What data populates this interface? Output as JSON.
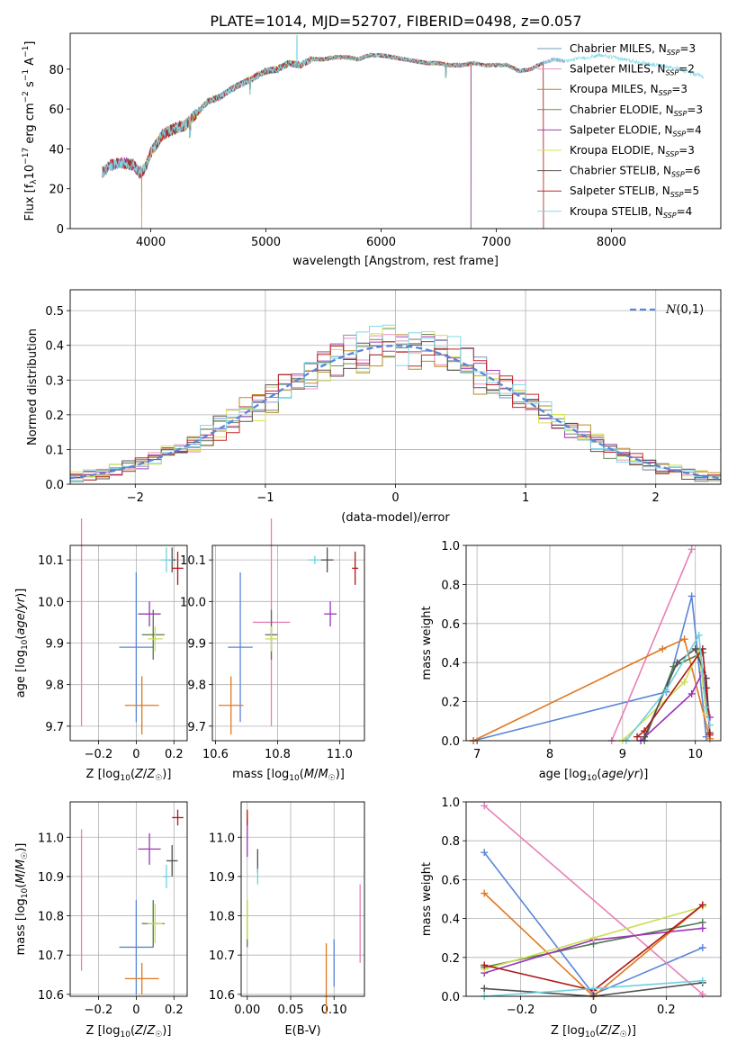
{
  "title": "PLATE=1014, MJD=52707, FIBERID=0498, z=0.057",
  "colors": [
    "#6f99b8",
    "#e88fc0",
    "#b88a2a",
    "#6f8a5f",
    "#a040b0",
    "#d8e050",
    "#5f5050",
    "#c02828",
    "#80d8e8"
  ],
  "panel_colors": [
    "#5a85d8",
    "#e87fb8",
    "#e07820",
    "#507850",
    "#9a35b8",
    "#c8e050",
    "#505050",
    "#b01818",
    "#70d0e0"
  ],
  "legend1": [
    "Chabrier MILES, N$_{SSP}$=3",
    "Salpeter MILES, N$_{SSP}$=2",
    "Kroupa MILES, N$_{SSP}$=3",
    "Chabrier ELODIE, N$_{SSP}$=3",
    "Salpeter ELODIE, N$_{SSP}$=4",
    "Kroupa ELODIE, N$_{SSP}$=3",
    "Chabrier STELIB, N$_{SSP}$=6",
    "Salpeter STELIB, N$_{SSP}$=5",
    "Kroupa STELIB, N$_{SSP}$=4"
  ],
  "legend1_display": [
    [
      "Chabrier MILES, N",
      "SSP",
      "=3"
    ],
    [
      "Salpeter MILES, N",
      "SSP",
      "=2"
    ],
    [
      "Kroupa MILES, N",
      "SSP",
      "=3"
    ],
    [
      "Chabrier ELODIE, N",
      "SSP",
      "=3"
    ],
    [
      "Salpeter ELODIE, N",
      "SSP",
      "=4"
    ],
    [
      "Kroupa ELODIE, N",
      "SSP",
      "=3"
    ],
    [
      "Chabrier STELIB, N",
      "SSP",
      "=6"
    ],
    [
      "Salpeter STELIB, N",
      "SSP",
      "=5"
    ],
    [
      "Kroupa STELIB, N",
      "SSP",
      "=4"
    ]
  ],
  "legend2": "N(0,1)",
  "chart_data": [
    {
      "type": "line",
      "title": "PLATE=1014, MJD=52707, FIBERID=0498, z=0.057",
      "xlabel": "wavelength [Angstrom, rest frame]",
      "ylabel": "Flux [f_λ 10^-17 erg cm^-2 s^-1 A^-1]",
      "xlim": [
        3300,
        8950
      ],
      "ylim": [
        0,
        98
      ],
      "xticks": [
        4000,
        5000,
        6000,
        7000,
        8000
      ],
      "yticks": [
        0,
        20,
        40,
        60,
        80
      ],
      "spectrum_anchors_x": [
        3580,
        3650,
        3750,
        3850,
        3900,
        3950,
        4000,
        4100,
        4200,
        4300,
        4400,
        4500,
        4600,
        4700,
        4800,
        4900,
        5000,
        5100,
        5200,
        5300,
        5400,
        5500,
        5600,
        5700,
        5800,
        5900,
        6000,
        6100,
        6200,
        6300,
        6400,
        6500,
        6600,
        6700,
        6800,
        6900,
        7000,
        7100,
        7200,
        7300,
        7400,
        7500,
        7600,
        7700,
        7800,
        7900,
        8000,
        8100,
        8200,
        8300,
        8400,
        8500,
        8600,
        8700,
        8800
      ],
      "spectrum_anchors_y": [
        28,
        32,
        33,
        32,
        28,
        30,
        38,
        47,
        50,
        52,
        58,
        64,
        66,
        70,
        73,
        76,
        79,
        80,
        83,
        82,
        85,
        85,
        86,
        86,
        85,
        87,
        87,
        86,
        85,
        84,
        83,
        83,
        82,
        82,
        83,
        82,
        82,
        82,
        79,
        80,
        83,
        85,
        84,
        85,
        86,
        87,
        86,
        85,
        84,
        83,
        82,
        81,
        80,
        78,
        76
      ],
      "series": [
        {
          "name": "Chabrier MILES, N_SSP=3",
          "x_range": [
            3580,
            7600
          ]
        },
        {
          "name": "Salpeter MILES, N_SSP=2",
          "x_range": [
            3580,
            7600
          ]
        },
        {
          "name": "Kroupa MILES, N_SSP=3",
          "x_range": [
            3580,
            7410
          ],
          "drops": [
            3920,
            6780
          ]
        },
        {
          "name": "Chabrier ELODIE, N_SSP=3",
          "x_range": [
            3580,
            6780
          ]
        },
        {
          "name": "Salpeter ELODIE, N_SSP=4",
          "x_range": [
            3580,
            6780
          ]
        },
        {
          "name": "Kroupa ELODIE, N_SSP=3",
          "x_range": [
            3900,
            6780
          ]
        },
        {
          "name": "Chabrier STELIB, N_SSP=6",
          "x_range": [
            3580,
            7410
          ]
        },
        {
          "name": "Salpeter STELIB, N_SSP=5",
          "x_range": [
            3580,
            7410
          ]
        },
        {
          "name": "Kroupa STELIB, N_SSP=4",
          "x_range": [
            3580,
            8800
          ]
        }
      ]
    },
    {
      "type": "histogram",
      "xlabel": "(data-model)/error",
      "ylabel": "Normed distribution",
      "xlim": [
        -2.5,
        2.5
      ],
      "ylim": [
        0,
        0.56
      ],
      "xticks": [
        -2,
        -1,
        0,
        1,
        2
      ],
      "yticks": [
        0.0,
        0.1,
        0.2,
        0.3,
        0.4,
        0.5
      ],
      "bin_width": 0.1,
      "reference": {
        "name": "N(0,1)",
        "mean": 0,
        "sigma": 1,
        "style": "dashed"
      }
    },
    {
      "type": "scatter",
      "xlabel": "Z [log10(Z/Z☉)]",
      "ylabel": "age [log10(age/yr)]",
      "xlim": [
        -0.35,
        0.27
      ],
      "ylim": [
        9.665,
        10.135
      ],
      "xticks": [
        -0.2,
        0.0,
        0.2
      ],
      "yticks": [
        9.7,
        9.8,
        9.9,
        10.0,
        10.1
      ],
      "points": [
        {
          "x": 0.0,
          "y": 9.89,
          "xerr": 0.09,
          "yerr": 0.18
        },
        {
          "x": -0.29,
          "y": 9.95,
          "xerr": 0.0,
          "yerr": 0.25
        },
        {
          "x": 0.03,
          "y": 9.75,
          "xerr": 0.09,
          "yerr": 0.07
        },
        {
          "x": 0.09,
          "y": 9.92,
          "xerr": 0.06,
          "yerr": 0.06
        },
        {
          "x": 0.07,
          "y": 9.97,
          "xerr": 0.06,
          "yerr": 0.03
        },
        {
          "x": 0.1,
          "y": 9.91,
          "xerr": 0.04,
          "yerr": 0.03
        },
        {
          "x": 0.19,
          "y": 10.1,
          "xerr": 0.02,
          "yerr": 0.03
        },
        {
          "x": 0.22,
          "y": 10.08,
          "xerr": 0.03,
          "yerr": 0.04
        },
        {
          "x": 0.16,
          "y": 10.1,
          "xerr": 0.03,
          "yerr": 0.03
        }
      ]
    },
    {
      "type": "scatter",
      "xlabel": "mass [log10(M/M☉)]",
      "ylabel": "",
      "xlim": [
        10.59,
        11.08
      ],
      "ylim": [
        9.665,
        10.135
      ],
      "xticks": [
        10.6,
        10.8,
        11.0
      ],
      "yticks": [
        9.7,
        9.8,
        9.9,
        10.0,
        10.1
      ],
      "points": [
        {
          "x": 10.68,
          "y": 9.89,
          "xerr": 0.04,
          "yerr": 0.18
        },
        {
          "x": 10.78,
          "y": 9.95,
          "xerr": 0.06,
          "yerr": 0.25
        },
        {
          "x": 10.65,
          "y": 9.75,
          "xerr": 0.04,
          "yerr": 0.07
        },
        {
          "x": 10.78,
          "y": 9.92,
          "xerr": 0.02,
          "yerr": 0.06
        },
        {
          "x": 10.97,
          "y": 9.97,
          "xerr": 0.02,
          "yerr": 0.03
        },
        {
          "x": 10.78,
          "y": 9.91,
          "xerr": 0.02,
          "yerr": 0.03
        },
        {
          "x": 10.96,
          "y": 10.1,
          "xerr": 0.02,
          "yerr": 0.03
        },
        {
          "x": 11.05,
          "y": 10.08,
          "xerr": 0.01,
          "yerr": 0.04
        },
        {
          "x": 10.92,
          "y": 10.1,
          "xerr": 0.02,
          "yerr": 0.01
        }
      ]
    },
    {
      "type": "line",
      "xlabel": "age [log10(age/yr)]",
      "ylabel": "mass weight",
      "xlim": [
        6.85,
        10.35
      ],
      "ylim": [
        0,
        1.0
      ],
      "xticks": [
        7,
        8,
        9,
        10
      ],
      "yticks": [
        0.0,
        0.2,
        0.4,
        0.6,
        0.8,
        1.0
      ],
      "series": [
        {
          "x": [
            6.95,
            9.6,
            9.95,
            10.15
          ],
          "y": [
            0.0,
            0.25,
            0.74,
            0.02
          ]
        },
        {
          "x": [
            8.85,
            9.95
          ],
          "y": [
            0.0,
            0.98
          ]
        },
        {
          "x": [
            6.95,
            9.55,
            9.85,
            10.2
          ],
          "y": [
            0.0,
            0.47,
            0.52,
            0.01
          ]
        },
        {
          "x": [
            9.3,
            9.7,
            10.1
          ],
          "y": [
            0.0,
            0.38,
            0.45
          ]
        },
        {
          "x": [
            9.25,
            9.95,
            10.1,
            10.2
          ],
          "y": [
            0.0,
            0.24,
            0.35,
            0.12
          ]
        },
        {
          "x": [
            9.0,
            9.85,
            10.05,
            10.15
          ],
          "y": [
            0.0,
            0.3,
            0.46,
            0.14
          ]
        },
        {
          "x": [
            9.3,
            9.75,
            10.0,
            10.15,
            10.2
          ],
          "y": [
            0.02,
            0.4,
            0.47,
            0.32,
            0.04
          ]
        },
        {
          "x": [
            9.2,
            9.3,
            10.1,
            10.15,
            10.2
          ],
          "y": [
            0.02,
            0.05,
            0.47,
            0.27,
            0.03
          ]
        },
        {
          "x": [
            9.05,
            9.6,
            10.05,
            10.15,
            10.2
          ],
          "y": [
            0.0,
            0.26,
            0.54,
            0.17,
            0.08
          ]
        }
      ]
    },
    {
      "type": "scatter",
      "xlabel": "Z [log10(Z/Z☉)]",
      "ylabel": "mass [log10(M/M☉)]",
      "xlim": [
        -0.35,
        0.27
      ],
      "ylim": [
        10.595,
        11.09
      ],
      "xticks": [
        -0.2,
        0.0,
        0.2
      ],
      "yticks": [
        10.6,
        10.7,
        10.8,
        10.9,
        11.0
      ],
      "points": [
        {
          "x": 0.0,
          "y": 10.72,
          "xerr": 0.09,
          "yerr": 0.12
        },
        {
          "x": -0.29,
          "y": 10.84,
          "xerr": 0.0,
          "yerr": 0.18
        },
        {
          "x": 0.03,
          "y": 10.64,
          "xerr": 0.09,
          "yerr": 0.04
        },
        {
          "x": 0.09,
          "y": 10.78,
          "xerr": 0.06,
          "yerr": 0.06
        },
        {
          "x": 0.07,
          "y": 10.97,
          "xerr": 0.06,
          "yerr": 0.04
        },
        {
          "x": 0.1,
          "y": 10.78,
          "xerr": 0.04,
          "yerr": 0.05
        },
        {
          "x": 0.19,
          "y": 10.94,
          "xerr": 0.03,
          "yerr": 0.04
        },
        {
          "x": 0.22,
          "y": 11.05,
          "xerr": 0.03,
          "yerr": 0.02
        },
        {
          "x": 0.16,
          "y": 10.9,
          "xerr": 0.02,
          "yerr": 0.03
        }
      ]
    },
    {
      "type": "scatter",
      "xlabel": "E(B-V)",
      "ylabel": "",
      "xlim": [
        -0.007,
        0.135
      ],
      "ylim": [
        10.595,
        11.09
      ],
      "xticks": [
        0.0,
        0.05,
        0.1
      ],
      "yticks": [
        10.6,
        10.7,
        10.8,
        10.9,
        11.0
      ],
      "points": [
        {
          "x": 0.1,
          "y": 10.68,
          "xerr": 0,
          "yerr": 0.06
        },
        {
          "x": 0.13,
          "y": 10.78,
          "xerr": 0,
          "yerr": 0.1
        },
        {
          "x": 0.091,
          "y": 10.64,
          "xerr": 0,
          "yerr": 0.09
        },
        {
          "x": 0.0,
          "y": 10.78,
          "xerr": 0,
          "yerr": 0.06
        },
        {
          "x": 0.0,
          "y": 11.0,
          "xerr": 0,
          "yerr": 0.05
        },
        {
          "x": 0.0,
          "y": 10.79,
          "xerr": 0,
          "yerr": 0.05
        },
        {
          "x": 0.012,
          "y": 10.94,
          "xerr": 0,
          "yerr": 0.03
        },
        {
          "x": 0.0,
          "y": 11.05,
          "xerr": 0,
          "yerr": 0.02
        },
        {
          "x": 0.012,
          "y": 10.9,
          "xerr": 0,
          "yerr": 0.02
        }
      ]
    },
    {
      "type": "line",
      "xlabel": "Z [log10(Z/Z☉)]",
      "ylabel": "mass weight",
      "xlim": [
        -0.35,
        0.35
      ],
      "ylim": [
        0,
        1.0
      ],
      "xticks": [
        -0.2,
        0.0,
        0.2
      ],
      "yticks": [
        0.0,
        0.2,
        0.4,
        0.6,
        0.8,
        1.0
      ],
      "series": [
        {
          "x": [
            -0.3,
            0.0,
            0.3
          ],
          "y": [
            0.74,
            0.01,
            0.25
          ]
        },
        {
          "x": [
            -0.3,
            0.3
          ],
          "y": [
            0.98,
            0.01
          ]
        },
        {
          "x": [
            -0.3,
            0.0,
            0.3
          ],
          "y": [
            0.53,
            0.0,
            0.47
          ]
        },
        {
          "x": [
            -0.3,
            0.0,
            0.3
          ],
          "y": [
            0.15,
            0.27,
            0.38
          ]
        },
        {
          "x": [
            -0.3,
            0.0,
            0.3
          ],
          "y": [
            0.12,
            0.29,
            0.35
          ]
        },
        {
          "x": [
            -0.3,
            0.0,
            0.3
          ],
          "y": [
            0.14,
            0.3,
            0.46
          ]
        },
        {
          "x": [
            -0.3,
            0.0,
            0.3
          ],
          "y": [
            0.04,
            0.0,
            0.07
          ]
        },
        {
          "x": [
            -0.3,
            0.0,
            0.3
          ],
          "y": [
            0.16,
            0.03,
            0.47
          ]
        },
        {
          "x": [
            -0.3,
            0.0,
            0.3
          ],
          "y": [
            0.0,
            0.04,
            0.08
          ]
        }
      ]
    }
  ]
}
